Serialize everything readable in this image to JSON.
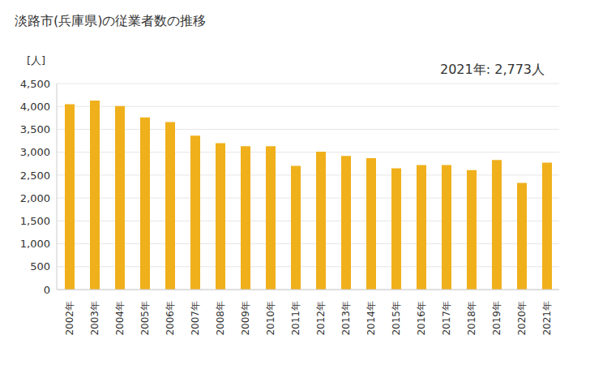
{
  "chart_data": {
    "type": "bar",
    "title": "淡路市(兵庫県)の従業者数の推移",
    "y_label": "[人]",
    "annotation": "2021年: 2,773人",
    "categories": [
      "2002年",
      "2003年",
      "2004年",
      "2005年",
      "2006年",
      "2007年",
      "2008年",
      "2009年",
      "2010年",
      "2011年",
      "2012年",
      "2013年",
      "2014年",
      "2015年",
      "2016年",
      "2017年",
      "2018年",
      "2019年",
      "2020年",
      "2021年"
    ],
    "values": [
      4050,
      4130,
      4010,
      3760,
      3660,
      3360,
      3200,
      3130,
      3130,
      2700,
      3010,
      2920,
      2870,
      2650,
      2720,
      2720,
      2610,
      2830,
      2330,
      2773
    ],
    "color": "#efb01b",
    "ylim": [
      0,
      4500
    ],
    "yticks": [
      0,
      500,
      {
        "value": 1000,
        "label": "1,000"
      },
      {
        "value": 1500,
        "label": "1,500"
      },
      {
        "value": 2000,
        "label": "2,000"
      },
      {
        "value": 2500,
        "label": "2,500"
      },
      {
        "value": 3000,
        "label": "3,000"
      },
      {
        "value": 3500,
        "label": "3,500"
      },
      {
        "value": 4000,
        "label": "4,000"
      },
      {
        "value": 4500,
        "label": "4,500"
      }
    ],
    "grid": true
  }
}
